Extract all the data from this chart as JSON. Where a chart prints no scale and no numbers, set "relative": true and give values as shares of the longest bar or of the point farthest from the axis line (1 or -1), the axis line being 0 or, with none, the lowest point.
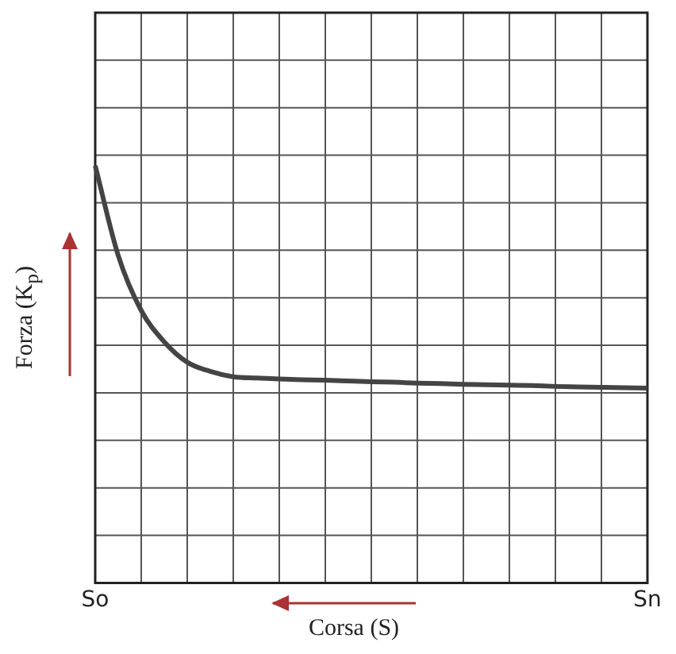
{
  "chart_data": {
    "type": "line",
    "xlabel": "Corsa (S)",
    "ylabel": "Forza (K$_{p}$)",
    "relative": true,
    "grid": true,
    "categories": [
      "So",
      null,
      null,
      null,
      null,
      null,
      null,
      null,
      null,
      null,
      null,
      null,
      null,
      null,
      null,
      null,
      null,
      null,
      null,
      null,
      null,
      null,
      null,
      null,
      "Sn"
    ],
    "series": [
      {
        "color": "#444444",
        "values": [
          1,
          0.785,
          0.653,
          0.578,
          0.529,
          0.507,
          0.494,
          0.491,
          0.489,
          0.487,
          0.486,
          0.484,
          0.482,
          0.481,
          0.479,
          0.478,
          0.476,
          0.475,
          0.474,
          0.473,
          0.471,
          0.47,
          0.469,
          0.468,
          0.467
        ]
      }
    ]
  }
}
